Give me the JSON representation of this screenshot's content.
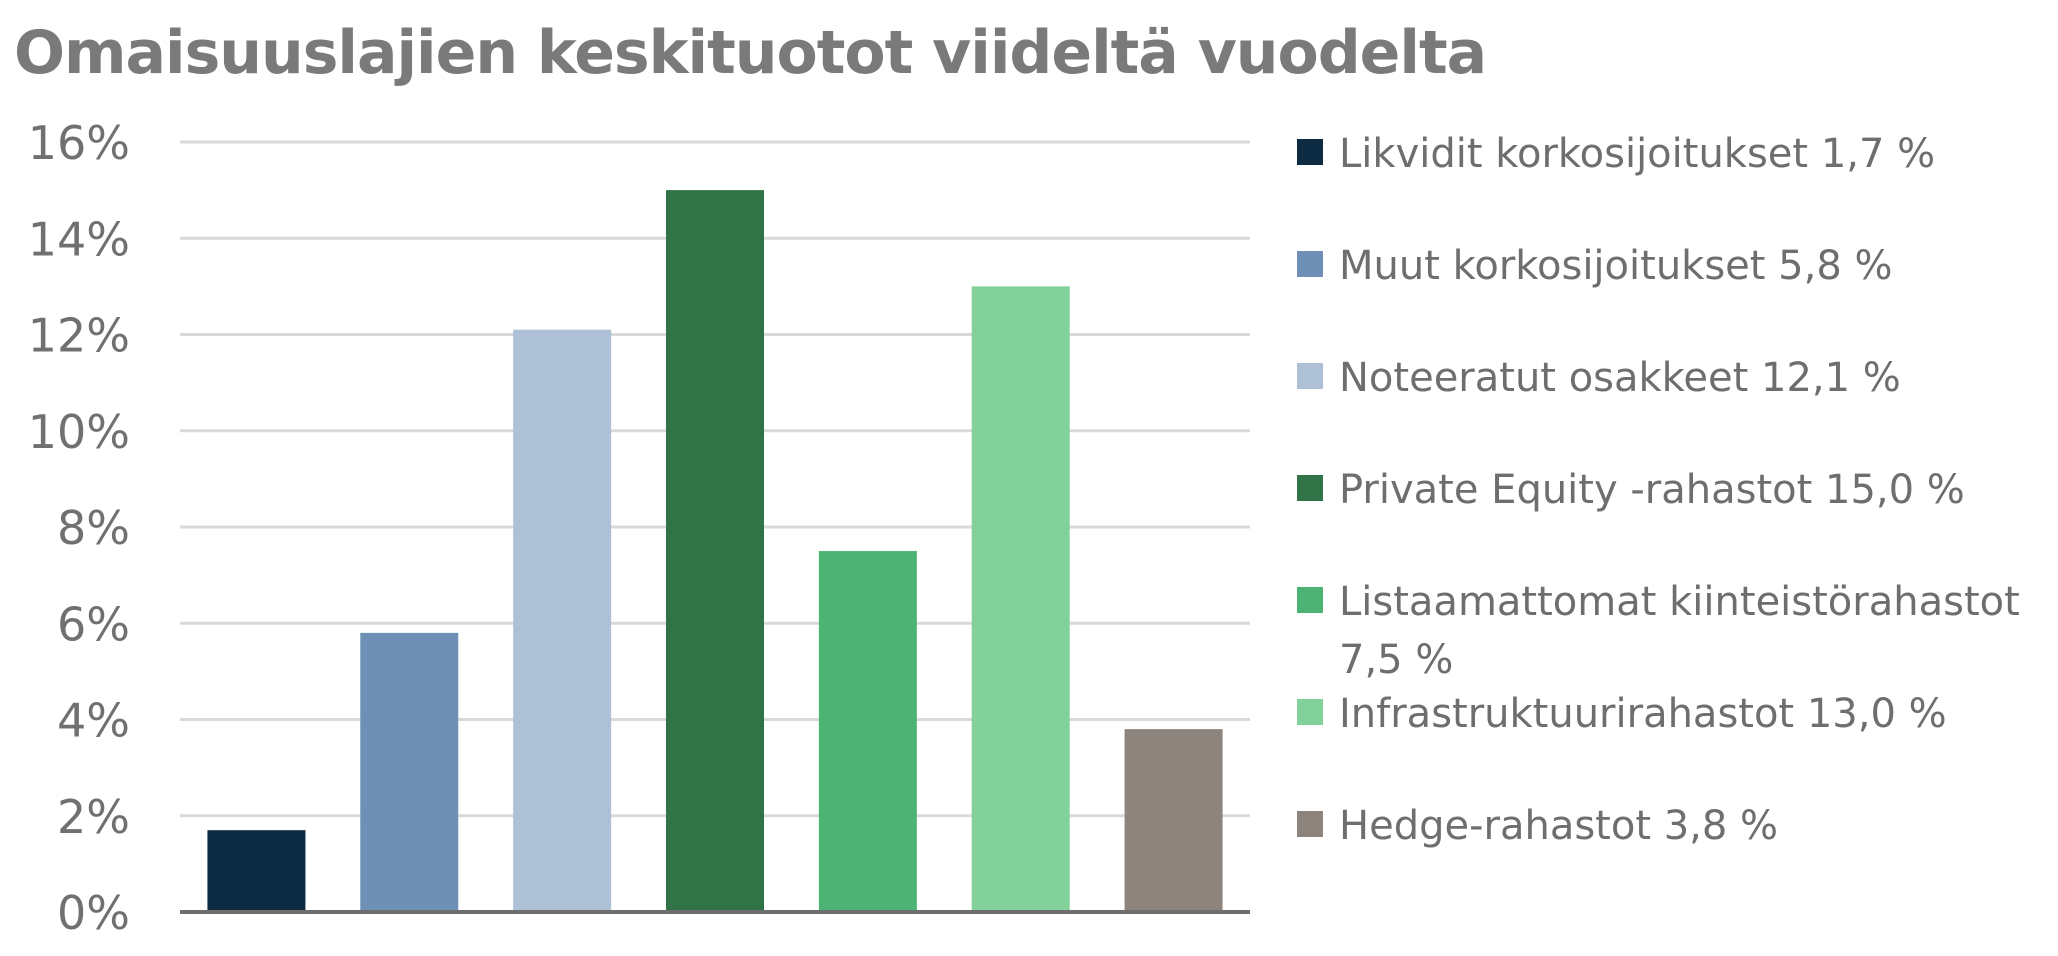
{
  "chart_data": {
    "type": "bar",
    "title": "Omaisuuslajien keskituotot viideltä vuodelta",
    "xlabel": "",
    "ylabel": "",
    "ylim": [
      0,
      16
    ],
    "yticks": [
      "0%",
      "2%",
      "4%",
      "6%",
      "8%",
      "10%",
      "12%",
      "14%",
      "16%"
    ],
    "grid": true,
    "legend_position": "right",
    "categories": [
      "Likvidit korkosijoitukset",
      "Muut korkosijoitukset",
      "Noteeratut osakkeet",
      "Private Equity -rahastot",
      "Listaamattomat kiinteistörahastot",
      "Infrastruktuurirahastot",
      "Hedge-rahastot"
    ],
    "values": [
      1.7,
      5.8,
      12.1,
      15.0,
      7.5,
      13.0,
      3.8
    ],
    "colors": [
      "#0d2b42",
      "#6e90b4",
      "#adc0d6",
      "#307347",
      "#4db374",
      "#82d09a",
      "#8d857d"
    ],
    "legend": [
      "Likvidit korkosijoitukset 1,7 %",
      "Muut korkosijoitukset 5,8 %",
      "Noteeratut osakkeet 12,1 %",
      "Private Equity -rahastot 15,0 %",
      "Listaamattomat kiinteistörahastot 7,5 %",
      "Infrastruktuurirahastot 13,0 %",
      "Hedge-rahastot 3,8 %"
    ]
  }
}
